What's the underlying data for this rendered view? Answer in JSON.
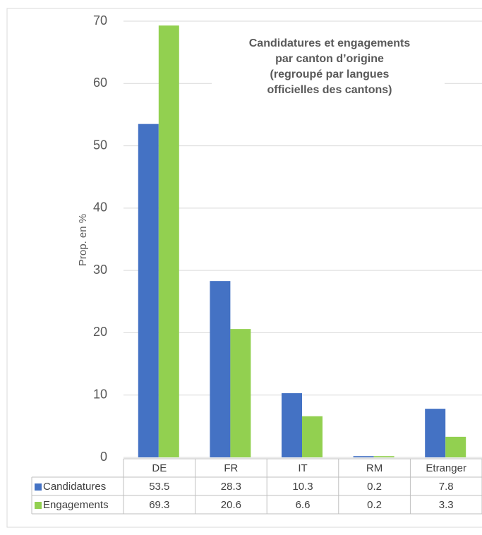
{
  "chart_data": {
    "type": "bar",
    "title": [
      "Candidatures et engagements",
      "par canton d’origine",
      "(regroupé par langues",
      "officielles des cantons)"
    ],
    "y_label": "Prop. en %",
    "categories": [
      "DE",
      "FR",
      "IT",
      "RM",
      "Etranger"
    ],
    "series": [
      {
        "name": "Candidatures",
        "color": "#4472c4",
        "values": [
          53.5,
          28.3,
          10.3,
          0.2,
          7.8
        ]
      },
      {
        "name": "Engagements",
        "color": "#92d050",
        "values": [
          69.3,
          20.6,
          6.6,
          0.2,
          3.3
        ]
      }
    ],
    "ylim": [
      0,
      70
    ],
    "yticks": [
      0,
      10,
      20,
      30,
      40,
      50,
      60,
      70
    ],
    "grid": true,
    "data_table": true
  }
}
